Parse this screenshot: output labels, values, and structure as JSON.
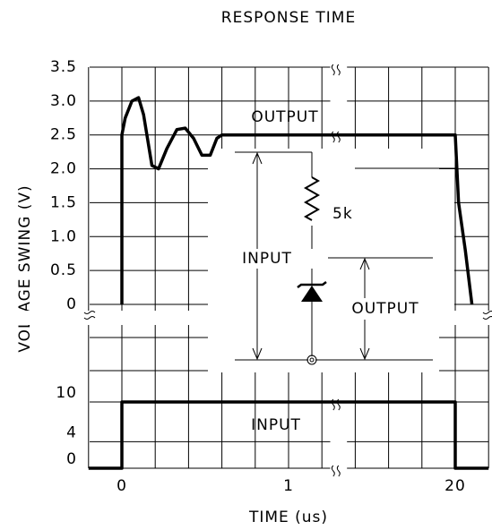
{
  "chart_data": {
    "type": "line",
    "title": "RESPONSE TIME",
    "x_label": "TIME (us)",
    "y_label": "VOLTAGE SWING (V)",
    "xlim": [
      -0.2,
      20.2
    ],
    "xbreak": [
      1.25,
      19.35
    ],
    "xticks": [
      0,
      1,
      20
    ],
    "x_grid_step": 0.2,
    "ylim": [
      0,
      3.5
    ],
    "yticks": [
      0,
      0.5,
      {
        "value": 1,
        "label": "1.0"
      },
      1.5,
      {
        "value": 2,
        "label": "2.0"
      },
      2.5,
      {
        "value": 3,
        "label": "3.0"
      },
      3.5
    ],
    "y2lim": [
      0,
      10
    ],
    "y2ticks": [
      0,
      4,
      10
    ],
    "grid": true,
    "series": [
      {
        "name": "OUTPUT",
        "color": "#000000",
        "x": [
          0,
          0,
          0.02,
          0.06,
          0.1,
          0.13,
          0.18,
          0.22,
          0.27,
          0.33,
          0.38,
          0.43,
          0.48,
          0.53,
          0.57,
          0.6,
          20,
          20.02,
          20.06,
          20.1
        ],
        "values": [
          0,
          2.5,
          2.75,
          3.0,
          3.05,
          2.8,
          2.05,
          2.0,
          2.3,
          2.58,
          2.6,
          2.45,
          2.2,
          2.2,
          2.45,
          2.5,
          2.5,
          1.5,
          0.8,
          0
        ]
      },
      {
        "name": "INPUT",
        "color": "#000000",
        "axis": "y2",
        "x": [
          -0.2,
          0,
          0,
          20,
          20,
          20.2
        ],
        "values": [
          0,
          0,
          10,
          10,
          0,
          0
        ]
      }
    ],
    "schematic": {
      "resistor": "5k",
      "input": "INPUT",
      "output": "OUTPUT"
    }
  }
}
